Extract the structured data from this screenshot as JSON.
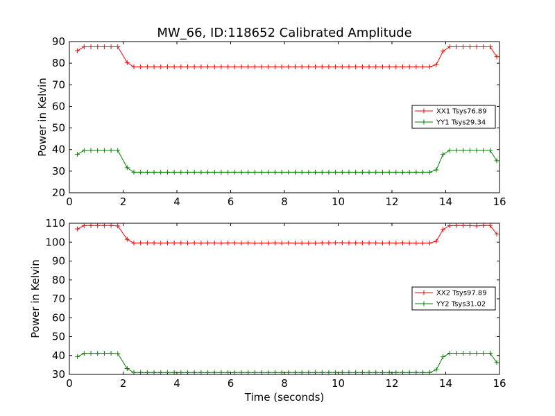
{
  "figure": {
    "title": "MW_66, ID:118652 Calibrated Amplitude"
  },
  "chart_data": [
    {
      "type": "line",
      "title": "MW_66, ID:118652 Calibrated Amplitude",
      "xlabel": "",
      "ylabel": "Power in Kelvin",
      "xlim": [
        0,
        16
      ],
      "ylim": [
        20,
        90
      ],
      "xticks": [
        "0",
        "2",
        "4",
        "6",
        "8",
        "10",
        "12",
        "14",
        "16"
      ],
      "yticks": [
        "20",
        "30",
        "40",
        "50",
        "60",
        "70",
        "80",
        "90"
      ],
      "legend_position": "center-right",
      "grid": false,
      "x": [
        0.3,
        0.55,
        0.8,
        1.05,
        1.3,
        1.55,
        1.8,
        2.15,
        2.4,
        2.65,
        2.9,
        3.15,
        3.4,
        3.65,
        3.9,
        4.15,
        4.4,
        4.65,
        4.9,
        5.15,
        5.4,
        5.65,
        5.9,
        6.15,
        6.4,
        6.65,
        6.9,
        7.15,
        7.4,
        7.65,
        7.9,
        8.15,
        8.4,
        8.65,
        8.9,
        9.15,
        9.4,
        9.65,
        9.9,
        10.15,
        10.4,
        10.65,
        10.9,
        11.15,
        11.4,
        11.65,
        11.9,
        12.15,
        12.4,
        12.65,
        12.9,
        13.15,
        13.4,
        13.65,
        13.9,
        14.15,
        14.4,
        14.65,
        14.9,
        15.15,
        15.4,
        15.65,
        15.9
      ],
      "series": [
        {
          "name": "XX1 Tsys76.89",
          "color": "#ff0000",
          "values": [
            85.8,
            87.6,
            87.6,
            87.6,
            87.6,
            87.6,
            87.6,
            80.3,
            78.3,
            78.3,
            78.3,
            78.3,
            78.3,
            78.3,
            78.3,
            78.3,
            78.3,
            78.3,
            78.3,
            78.3,
            78.3,
            78.3,
            78.3,
            78.3,
            78.3,
            78.3,
            78.3,
            78.3,
            78.3,
            78.3,
            78.3,
            78.3,
            78.3,
            78.3,
            78.3,
            78.3,
            78.3,
            78.3,
            78.3,
            78.3,
            78.3,
            78.3,
            78.3,
            78.3,
            78.3,
            78.3,
            78.3,
            78.3,
            78.3,
            78.3,
            78.3,
            78.3,
            78.3,
            79.3,
            85.6,
            87.6,
            87.6,
            87.6,
            87.6,
            87.6,
            87.6,
            87.6,
            83.0
          ]
        },
        {
          "name": "YY1 Tsys29.34",
          "color": "#008000",
          "values": [
            37.8,
            39.6,
            39.6,
            39.6,
            39.6,
            39.6,
            39.6,
            31.6,
            29.5,
            29.5,
            29.5,
            29.5,
            29.5,
            29.5,
            29.5,
            29.5,
            29.5,
            29.5,
            29.5,
            29.5,
            29.5,
            29.5,
            29.5,
            29.5,
            29.5,
            29.5,
            29.5,
            29.5,
            29.5,
            29.5,
            29.5,
            29.5,
            29.5,
            29.5,
            29.5,
            29.5,
            29.5,
            29.5,
            29.5,
            29.5,
            29.5,
            29.5,
            29.5,
            29.5,
            29.5,
            29.5,
            29.5,
            29.5,
            29.5,
            29.5,
            29.5,
            29.5,
            29.5,
            30.6,
            37.8,
            39.6,
            39.6,
            39.6,
            39.6,
            39.6,
            39.6,
            39.6,
            34.8
          ]
        }
      ]
    },
    {
      "type": "line",
      "title": "",
      "xlabel": "Time (seconds)",
      "ylabel": "Power in Kelvin",
      "xlim": [
        0,
        16
      ],
      "ylim": [
        30,
        110
      ],
      "xticks": [
        "0",
        "2",
        "4",
        "6",
        "8",
        "10",
        "12",
        "14",
        "16"
      ],
      "yticks": [
        "30",
        "40",
        "50",
        "60",
        "70",
        "80",
        "90",
        "100",
        "110"
      ],
      "legend_position": "center-right",
      "grid": false,
      "x": [
        0.3,
        0.55,
        0.8,
        1.05,
        1.3,
        1.55,
        1.8,
        2.15,
        2.4,
        2.65,
        2.9,
        3.15,
        3.4,
        3.65,
        3.9,
        4.15,
        4.4,
        4.65,
        4.9,
        5.15,
        5.4,
        5.65,
        5.9,
        6.15,
        6.4,
        6.65,
        6.9,
        7.15,
        7.4,
        7.65,
        7.9,
        8.15,
        8.4,
        8.65,
        8.9,
        9.15,
        9.4,
        9.65,
        9.9,
        10.15,
        10.4,
        10.65,
        10.9,
        11.15,
        11.4,
        11.65,
        11.9,
        12.15,
        12.4,
        12.65,
        12.9,
        13.15,
        13.4,
        13.65,
        13.9,
        14.15,
        14.4,
        14.65,
        14.9,
        15.15,
        15.4,
        15.65,
        15.9
      ],
      "series": [
        {
          "name": "XX2 Tsys97.89",
          "color": "#ff0000",
          "values": [
            107.0,
            108.8,
            108.8,
            108.8,
            108.8,
            108.8,
            108.6,
            101.5,
            99.5,
            99.6,
            99.6,
            99.6,
            99.5,
            99.6,
            99.6,
            99.6,
            99.5,
            99.6,
            99.5,
            99.6,
            99.6,
            99.5,
            99.6,
            99.6,
            99.5,
            99.6,
            99.5,
            99.5,
            99.5,
            99.6,
            99.5,
            99.6,
            99.5,
            99.5,
            99.5,
            99.5,
            99.6,
            99.6,
            99.7,
            99.7,
            99.6,
            99.6,
            99.6,
            99.6,
            99.6,
            99.5,
            99.6,
            99.5,
            99.6,
            99.5,
            99.5,
            99.5,
            99.5,
            100.5,
            106.7,
            108.7,
            108.8,
            108.8,
            108.7,
            108.6,
            108.8,
            108.8,
            104.3
          ]
        },
        {
          "name": "YY2 Tsys31.02",
          "color": "#008000",
          "values": [
            39.4,
            41.1,
            41.2,
            41.1,
            41.2,
            41.2,
            41.0,
            33.1,
            31.0,
            31.0,
            31.0,
            31.0,
            31.0,
            31.0,
            31.0,
            31.0,
            31.0,
            31.0,
            31.0,
            31.0,
            31.0,
            31.0,
            31.0,
            31.0,
            31.0,
            31.0,
            31.0,
            31.0,
            31.0,
            31.0,
            31.0,
            31.0,
            31.0,
            31.0,
            31.0,
            31.0,
            31.0,
            31.0,
            31.0,
            31.0,
            31.0,
            31.0,
            31.0,
            31.0,
            31.0,
            31.0,
            31.0,
            31.0,
            31.0,
            31.0,
            31.0,
            31.0,
            31.0,
            32.5,
            39.3,
            41.2,
            41.2,
            41.2,
            41.2,
            41.2,
            41.2,
            41.2,
            36.3
          ]
        }
      ]
    }
  ]
}
